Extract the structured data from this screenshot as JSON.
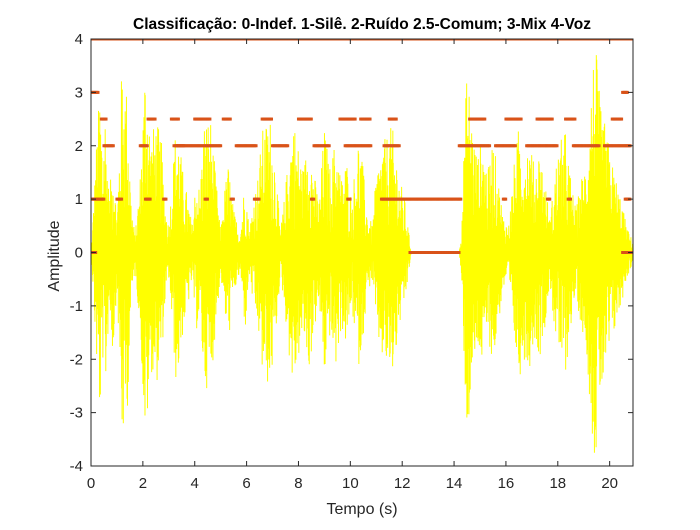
{
  "chart_data": {
    "type": "line",
    "title": "Classificação: 0-Indef. 1-Silê. 2-Ruído 2.5-Comum; 3-Mix 4-Voz",
    "xlabel": "Tempo (s)",
    "ylabel": "Amplitude",
    "xlim": [
      0,
      20.9
    ],
    "ylim": [
      -4,
      4
    ],
    "xticks": [
      0,
      2,
      4,
      6,
      8,
      10,
      12,
      14,
      16,
      18,
      20
    ],
    "yticks": [
      -4,
      -3,
      -2,
      -1,
      0,
      1,
      2,
      3,
      4
    ],
    "grid": false,
    "legend": "none",
    "colors": {
      "signal": "#ffff00",
      "classification": "#d95319",
      "axes": "#262626",
      "background": "#ffffff"
    },
    "series": [
      {
        "type": "line",
        "color": "#ffff00",
        "envelope": [
          [
            0.0,
            0.0
          ],
          [
            0.05,
            0.4
          ],
          [
            0.2,
            2.0
          ],
          [
            0.35,
            3.2
          ],
          [
            0.45,
            2.0
          ],
          [
            0.55,
            2.8
          ],
          [
            0.7,
            1.0
          ],
          [
            0.85,
            2.0
          ],
          [
            1.0,
            0.6
          ],
          [
            1.2,
            3.7
          ],
          [
            1.4,
            3.0
          ],
          [
            1.55,
            1.0
          ],
          [
            1.7,
            0.3
          ],
          [
            1.9,
            1.5
          ],
          [
            2.1,
            3.8
          ],
          [
            2.3,
            2.2
          ],
          [
            2.5,
            2.5
          ],
          [
            2.7,
            2.2
          ],
          [
            2.85,
            1.0
          ],
          [
            3.0,
            0.5
          ],
          [
            3.15,
            1.6
          ],
          [
            3.3,
            2.6
          ],
          [
            3.55,
            1.5
          ],
          [
            3.75,
            1.0
          ],
          [
            3.9,
            0.5
          ],
          [
            4.05,
            1.5
          ],
          [
            4.2,
            1.2
          ],
          [
            4.35,
            2.5
          ],
          [
            4.6,
            2.6
          ],
          [
            4.8,
            1.5
          ],
          [
            5.0,
            0.4
          ],
          [
            5.15,
            1.2
          ],
          [
            5.3,
            1.7
          ],
          [
            5.5,
            0.8
          ],
          [
            5.75,
            0.4
          ],
          [
            5.95,
            1.5
          ],
          [
            6.1,
            0.4
          ],
          [
            6.25,
            1.0
          ],
          [
            6.45,
            1.5
          ],
          [
            6.6,
            2.3
          ],
          [
            6.9,
            2.6
          ],
          [
            7.1,
            1.8
          ],
          [
            7.3,
            0.4
          ],
          [
            7.45,
            1.0
          ],
          [
            7.65,
            2.0
          ],
          [
            7.8,
            2.6
          ],
          [
            8.0,
            2.0
          ],
          [
            8.2,
            1.6
          ],
          [
            8.4,
            2.3
          ],
          [
            8.6,
            1.5
          ],
          [
            8.8,
            1.0
          ],
          [
            9.0,
            2.4
          ],
          [
            9.2,
            1.6
          ],
          [
            9.45,
            2.2
          ],
          [
            9.65,
            1.4
          ],
          [
            9.85,
            1.8
          ],
          [
            10.05,
            1.0
          ],
          [
            10.3,
            2.2
          ],
          [
            10.45,
            1.8
          ],
          [
            10.65,
            0.8
          ],
          [
            10.85,
            0.5
          ],
          [
            11.0,
            1.5
          ],
          [
            11.2,
            2.0
          ],
          [
            11.4,
            2.2
          ],
          [
            11.6,
            2.4
          ],
          [
            11.75,
            2.0
          ],
          [
            11.9,
            1.4
          ],
          [
            12.1,
            1.0
          ],
          [
            12.25,
            0.4
          ],
          [
            12.35,
            0.0
          ],
          [
            14.2,
            0.0
          ],
          [
            14.3,
            0.8
          ],
          [
            14.5,
            3.6
          ],
          [
            14.7,
            2.5
          ],
          [
            14.9,
            1.8
          ],
          [
            15.1,
            2.2
          ],
          [
            15.3,
            1.5
          ],
          [
            15.5,
            2.2
          ],
          [
            15.7,
            1.4
          ],
          [
            15.9,
            0.7
          ],
          [
            16.1,
            0.5
          ],
          [
            16.3,
            1.6
          ],
          [
            16.5,
            2.4
          ],
          [
            16.7,
            2.0
          ],
          [
            16.9,
            2.2
          ],
          [
            17.1,
            1.6
          ],
          [
            17.3,
            2.0
          ],
          [
            17.5,
            1.4
          ],
          [
            17.7,
            0.6
          ],
          [
            17.9,
            1.6
          ],
          [
            18.1,
            2.1
          ],
          [
            18.3,
            2.3
          ],
          [
            18.5,
            1.4
          ],
          [
            18.7,
            0.8
          ],
          [
            18.9,
            1.4
          ],
          [
            19.1,
            1.8
          ],
          [
            19.35,
            3.6
          ],
          [
            19.45,
            4.0
          ],
          [
            19.65,
            2.7
          ],
          [
            19.85,
            2.4
          ],
          [
            20.05,
            1.8
          ],
          [
            20.25,
            1.4
          ],
          [
            20.45,
            1.0
          ],
          [
            20.65,
            0.5
          ],
          [
            20.9,
            0.2
          ]
        ]
      },
      {
        "type": "scatter",
        "color": "#d95319",
        "levels": [
          {
            "y": 4,
            "segments": [
              [
                0.0,
                20.9
              ]
            ]
          },
          {
            "y": 3,
            "segments": [
              [
                0.0,
                0.3
              ],
              [
                20.5,
                20.7
              ]
            ]
          },
          {
            "y": 2.5,
            "segments": [
              [
                0.4,
                0.6
              ],
              [
                2.2,
                2.5
              ],
              [
                3.1,
                3.4
              ],
              [
                4.0,
                4.6
              ],
              [
                5.1,
                5.4
              ],
              [
                6.6,
                7.0
              ],
              [
                8.0,
                8.5
              ],
              [
                9.6,
                10.2
              ],
              [
                10.4,
                10.8
              ],
              [
                11.5,
                11.8
              ],
              [
                14.6,
                15.2
              ],
              [
                16.0,
                16.6
              ],
              [
                17.2,
                17.8
              ],
              [
                18.3,
                18.7
              ],
              [
                20.1,
                20.5
              ]
            ]
          },
          {
            "y": 2,
            "segments": [
              [
                0.5,
                0.9
              ],
              [
                1.9,
                2.2
              ],
              [
                3.3,
                3.6
              ],
              [
                3.2,
                5.0
              ],
              [
                5.6,
                6.4
              ],
              [
                7.0,
                7.6
              ],
              [
                8.6,
                9.2
              ],
              [
                9.8,
                10.8
              ],
              [
                11.3,
                11.9
              ],
              [
                14.2,
                15.4
              ],
              [
                15.6,
                16.4
              ],
              [
                16.8,
                18.0
              ],
              [
                18.6,
                19.6
              ],
              [
                19.8,
                20.8
              ]
            ]
          },
          {
            "y": 1,
            "segments": [
              [
                0.0,
                0.5
              ],
              [
                1.0,
                1.2
              ],
              [
                2.1,
                2.3
              ],
              [
                2.8,
                2.9
              ],
              [
                4.4,
                4.5
              ],
              [
                5.4,
                5.5
              ],
              [
                6.3,
                6.5
              ],
              [
                8.5,
                8.6
              ],
              [
                9.9,
                10.0
              ],
              [
                11.2,
                14.3
              ],
              [
                15.9,
                16.0
              ],
              [
                17.6,
                17.7
              ],
              [
                18.4,
                18.5
              ],
              [
                20.6,
                20.8
              ]
            ]
          },
          {
            "y": 0,
            "segments": [
              [
                0.0,
                0.2
              ],
              [
                12.3,
                14.2
              ],
              [
                20.5,
                20.9
              ]
            ]
          }
        ]
      }
    ]
  }
}
